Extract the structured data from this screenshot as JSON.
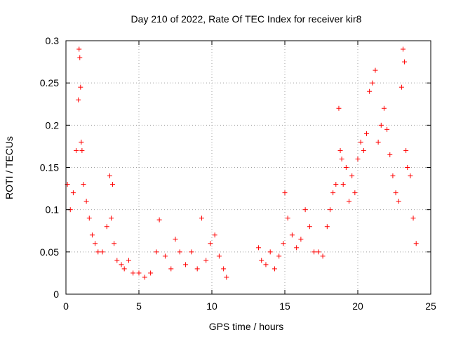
{
  "chart_data": {
    "type": "scatter",
    "title": "Day 210 of 2022, Rate Of TEC Index for receiver kir8",
    "xlabel": "GPS time / hours",
    "ylabel": "ROTI / TECUs",
    "xlim": [
      0,
      25
    ],
    "ylim": [
      0,
      0.3
    ],
    "x_ticks": [
      0,
      5,
      10,
      15,
      20,
      25
    ],
    "y_ticks": [
      0,
      0.05,
      0.1,
      0.15,
      0.2,
      0.25,
      0.3
    ],
    "x_tick_labels": [
      "0",
      "5",
      "10",
      "15",
      "20",
      "25"
    ],
    "y_tick_labels": [
      "0",
      "0.05",
      "0.1",
      "0.15",
      "0.2",
      "0.25",
      "0.3"
    ],
    "grid": true,
    "marker": "+",
    "color": "#ff0000",
    "series": [
      {
        "x": [
          0.1,
          0.3,
          0.5,
          0.7,
          0.85,
          0.9,
          0.95,
          1.0,
          1.05,
          1.1,
          1.2,
          1.4,
          1.6,
          1.8,
          2.0,
          2.2,
          2.5,
          2.8,
          3.0,
          3.1,
          3.2,
          3.3,
          3.5,
          3.8,
          4.0,
          4.3,
          4.6,
          5.0,
          5.4,
          5.8,
          6.2,
          6.4,
          6.8,
          7.2,
          7.5,
          7.8,
          8.2,
          8.6,
          9.0,
          9.3,
          9.6,
          9.9,
          10.2,
          10.5,
          10.8,
          11.0,
          13.2,
          13.4,
          13.7,
          14.0,
          14.3,
          14.6,
          14.9,
          15.0,
          15.2,
          15.5,
          15.8,
          16.1,
          16.4,
          16.7,
          17.0,
          17.3,
          17.6,
          17.9,
          18.1,
          18.3,
          18.5,
          18.7,
          18.8,
          18.9,
          19.0,
          19.2,
          19.4,
          19.6,
          19.8,
          20.0,
          20.2,
          20.4,
          20.6,
          20.8,
          21.0,
          21.2,
          21.4,
          21.6,
          21.8,
          22.0,
          22.2,
          22.4,
          22.6,
          22.8,
          23.0,
          23.1,
          23.2,
          23.3,
          23.4,
          23.6,
          23.8,
          24.0
        ],
        "y": [
          0.13,
          0.1,
          0.12,
          0.17,
          0.23,
          0.29,
          0.28,
          0.245,
          0.18,
          0.17,
          0.13,
          0.11,
          0.09,
          0.07,
          0.06,
          0.05,
          0.05,
          0.08,
          0.14,
          0.09,
          0.13,
          0.06,
          0.04,
          0.035,
          0.03,
          0.04,
          0.025,
          0.025,
          0.02,
          0.025,
          0.05,
          0.088,
          0.045,
          0.03,
          0.065,
          0.05,
          0.035,
          0.05,
          0.03,
          0.09,
          0.04,
          0.06,
          0.07,
          0.045,
          0.03,
          0.02,
          0.055,
          0.04,
          0.035,
          0.05,
          0.03,
          0.045,
          0.06,
          0.12,
          0.09,
          0.07,
          0.055,
          0.065,
          0.1,
          0.08,
          0.05,
          0.05,
          0.045,
          0.08,
          0.1,
          0.12,
          0.13,
          0.22,
          0.17,
          0.16,
          0.13,
          0.15,
          0.11,
          0.14,
          0.12,
          0.16,
          0.18,
          0.17,
          0.19,
          0.24,
          0.25,
          0.265,
          0.18,
          0.2,
          0.22,
          0.195,
          0.165,
          0.14,
          0.12,
          0.11,
          0.245,
          0.29,
          0.275,
          0.17,
          0.15,
          0.14,
          0.09,
          0.06
        ]
      }
    ]
  }
}
